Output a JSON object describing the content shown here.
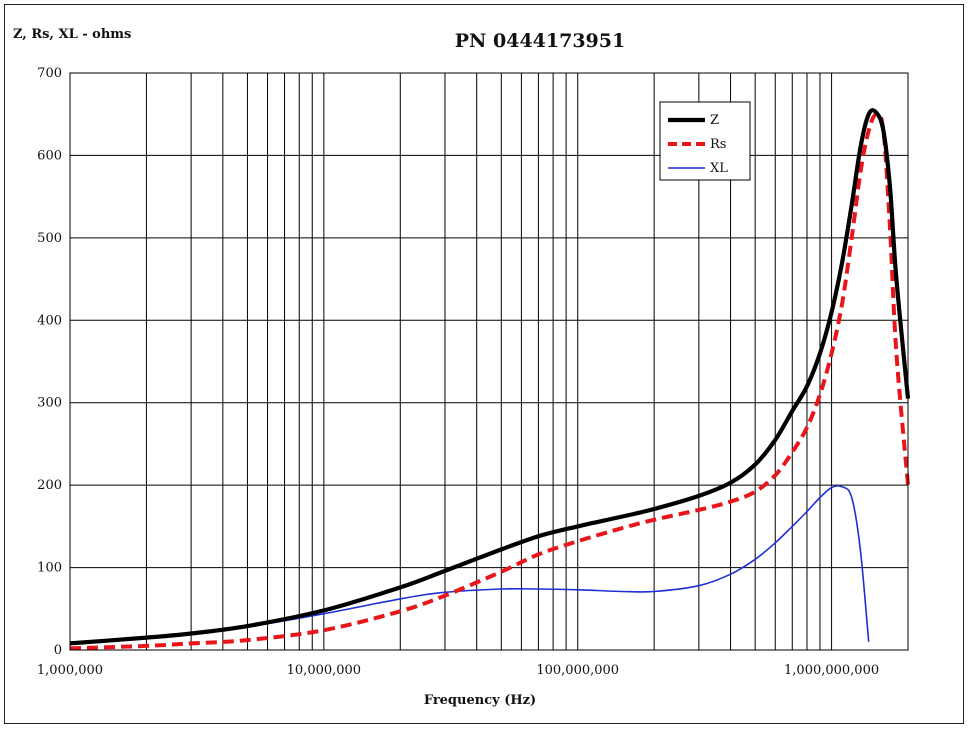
{
  "chart_data": {
    "type": "line",
    "title": "PN 0444173951",
    "ylabel": "Z, Rs, XL - ohms",
    "xlabel": "Frequency (Hz)",
    "x_scale": "log",
    "xlim": [
      1000000,
      2000000000
    ],
    "ylim": [
      0,
      700
    ],
    "y_ticks": [
      0,
      100,
      200,
      300,
      400,
      500,
      600,
      700
    ],
    "x_ticks": [
      {
        "value": 1000000,
        "label": "1,000,000"
      },
      {
        "value": 10000000,
        "label": "10,000,000"
      },
      {
        "value": 100000000,
        "label": "100,000,000"
      },
      {
        "value": 1000000000,
        "label": "1,000,000,000"
      }
    ],
    "grid": true,
    "legend_position": "top-right",
    "x": [
      1000000,
      2000000,
      3000000,
      5000000,
      10000000,
      20000000,
      30000000,
      50000000,
      70000000,
      100000000,
      150000000,
      200000000,
      300000000,
      400000000,
      500000000,
      600000000,
      700000000,
      800000000,
      900000000,
      1000000000,
      1100000000,
      1200000000,
      1300000000,
      1400000000,
      1500000000,
      1600000000,
      1700000000,
      1800000000,
      2000000000
    ],
    "series": [
      {
        "name": "Z",
        "color": "#000000",
        "style": "solid-thick",
        "values": [
          8,
          15,
          20,
          29,
          48,
          76,
          96,
          122,
          138,
          150,
          162,
          171,
          187,
          203,
          225,
          255,
          290,
          320,
          360,
          410,
          470,
          540,
          610,
          650,
          652,
          630,
          560,
          450,
          305
        ]
      },
      {
        "name": "Rs",
        "color": "#e8161a",
        "style": "dashed",
        "values": [
          2,
          5,
          8,
          12,
          24,
          47,
          66,
          95,
          116,
          132,
          148,
          158,
          170,
          180,
          192,
          212,
          240,
          270,
          310,
          360,
          420,
          500,
          580,
          630,
          650,
          630,
          510,
          360,
          200
        ]
      },
      {
        "name": "XL",
        "color": "#1f2fd6",
        "style": "solid-thin",
        "values": [
          7,
          14,
          19,
          28,
          44,
          62,
          70,
          74,
          74,
          73,
          71,
          71,
          78,
          92,
          110,
          130,
          150,
          168,
          185,
          197,
          198,
          185,
          120,
          10,
          null,
          null,
          null,
          null,
          null
        ]
      }
    ]
  }
}
